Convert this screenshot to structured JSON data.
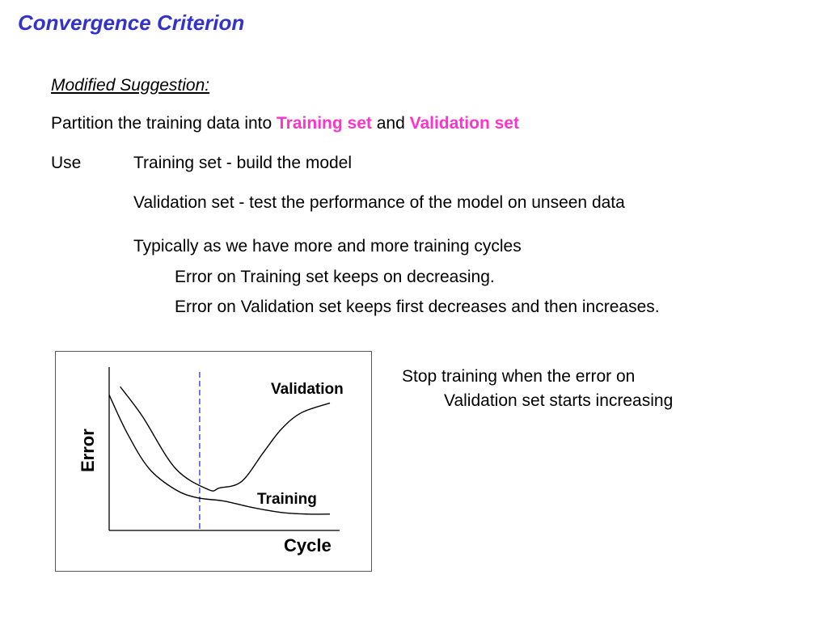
{
  "slide": {
    "title": "Convergence Criterion",
    "subheading": "Modified Suggestion:",
    "partition": {
      "prefix": "Partition the training data into ",
      "training_set": "Training set",
      "middle": " and ",
      "validation_set": "Validation set"
    },
    "use_label": "Use",
    "use_lines": [
      "Training set - build the model",
      "Validation set - test the performance of the model on unseen data"
    ],
    "typically": "Typically as we have more and more training cycles",
    "error_lines": [
      "Error on Training set keeps on decreasing.",
      "Error on Validation set keeps first decreases and then increases."
    ],
    "stop_note": {
      "line1": "Stop training when the error on",
      "line2": "Validation set starts increasing"
    }
  },
  "colors": {
    "title": "#3333cc",
    "highlight": "#ff33cc",
    "stop_line": "#3333cc"
  },
  "chart_data": {
    "type": "line",
    "xlabel": "Cycle",
    "ylabel": "Error",
    "series": [
      {
        "name": "Validation",
        "x": [
          0.05,
          0.15,
          0.3,
          0.45,
          0.5,
          0.6,
          0.7,
          0.78,
          0.87,
          1.0
        ],
        "y": [
          0.88,
          0.7,
          0.38,
          0.25,
          0.26,
          0.3,
          0.48,
          0.62,
          0.72,
          0.78
        ]
      },
      {
        "name": "Training",
        "x": [
          0.0,
          0.08,
          0.18,
          0.3,
          0.4,
          0.52,
          0.65,
          0.78,
          0.9,
          1.0
        ],
        "y": [
          0.83,
          0.6,
          0.38,
          0.25,
          0.2,
          0.18,
          0.14,
          0.11,
          0.1,
          0.1
        ]
      }
    ],
    "stop_x": 0.41,
    "xlim": [
      0,
      1
    ],
    "ylim": [
      0,
      1
    ],
    "grid": false
  }
}
